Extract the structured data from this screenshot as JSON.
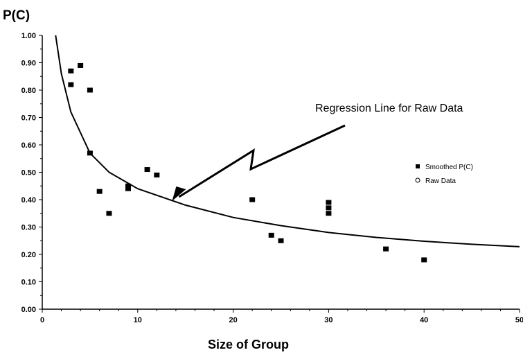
{
  "chart_data": {
    "type": "scatter",
    "ylabel": "P(C)",
    "xlabel": "Size of Group",
    "xlim": [
      0,
      50
    ],
    "ylim": [
      0,
      1
    ],
    "x_ticks": [
      0,
      10,
      20,
      30,
      40,
      50
    ],
    "y_ticks": [
      0,
      0.1,
      0.2,
      0.3,
      0.4,
      0.5,
      0.6,
      0.7,
      0.8,
      0.9,
      1.0
    ],
    "x_tick_labels": [
      "0",
      "10",
      "20",
      "30",
      "40",
      "50"
    ],
    "y_tick_labels": [
      "0.00",
      "0.10",
      "0.20",
      "0.30",
      "0.40",
      "0.50",
      "0.60",
      "0.70",
      "0.80",
      "0.90",
      "1.00"
    ],
    "grid": false,
    "legend_position": "right",
    "series": [
      {
        "name": "Smoothed P(C)",
        "marker": "filled-square",
        "points": [
          {
            "x": 3,
            "y": 0.87
          },
          {
            "x": 3,
            "y": 0.82
          },
          {
            "x": 4,
            "y": 0.89
          },
          {
            "x": 5,
            "y": 0.8
          },
          {
            "x": 5,
            "y": 0.57
          },
          {
            "x": 6,
            "y": 0.43
          },
          {
            "x": 7,
            "y": 0.35
          },
          {
            "x": 9,
            "y": 0.45
          },
          {
            "x": 9,
            "y": 0.44
          },
          {
            "x": 11,
            "y": 0.51
          },
          {
            "x": 12,
            "y": 0.49
          },
          {
            "x": 22,
            "y": 0.4
          },
          {
            "x": 24,
            "y": 0.27
          },
          {
            "x": 25,
            "y": 0.25
          },
          {
            "x": 30,
            "y": 0.39
          },
          {
            "x": 30,
            "y": 0.37
          },
          {
            "x": 30,
            "y": 0.35
          },
          {
            "x": 36,
            "y": 0.22
          },
          {
            "x": 40,
            "y": 0.18
          }
        ]
      },
      {
        "name": "Raw Data",
        "marker": "open-circle",
        "points": []
      }
    ],
    "regression_line": {
      "points": [
        {
          "x": 1.4,
          "y": 1.0
        },
        {
          "x": 2,
          "y": 0.86
        },
        {
          "x": 3,
          "y": 0.72
        },
        {
          "x": 5,
          "y": 0.57
        },
        {
          "x": 7,
          "y": 0.5
        },
        {
          "x": 10,
          "y": 0.44
        },
        {
          "x": 15,
          "y": 0.38
        },
        {
          "x": 20,
          "y": 0.335
        },
        {
          "x": 25,
          "y": 0.305
        },
        {
          "x": 30,
          "y": 0.28
        },
        {
          "x": 35,
          "y": 0.262
        },
        {
          "x": 40,
          "y": 0.248
        },
        {
          "x": 45,
          "y": 0.237
        },
        {
          "x": 50,
          "y": 0.228
        }
      ]
    },
    "annotation": {
      "text": "Regression Line for Raw Data",
      "arrow_tip": {
        "x": 13.6,
        "y": 0.395
      }
    }
  },
  "colors": {
    "ink": "#000000",
    "background": "#ffffff"
  }
}
